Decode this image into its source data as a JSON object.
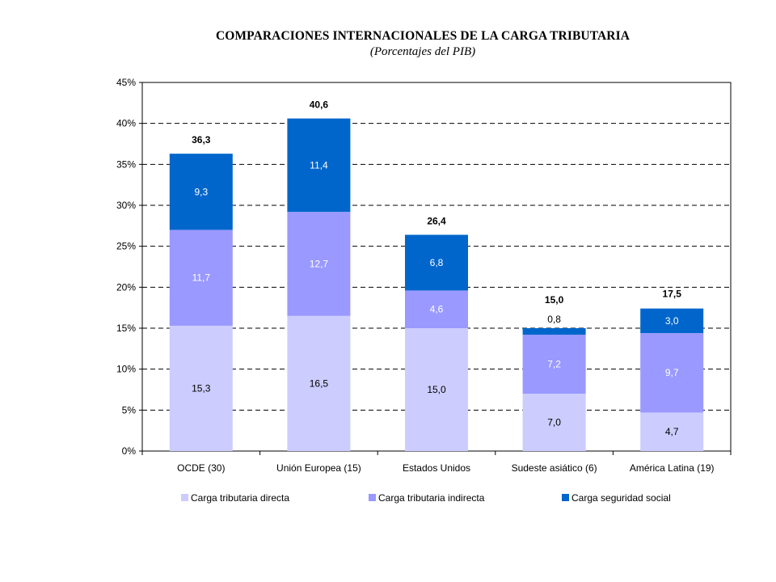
{
  "chart_data": {
    "type": "bar",
    "stacked": true,
    "title": "COMPARACIONES INTERNACIONALES DE LA CARGA TRIBUTARIA",
    "subtitle": "(Porcentajes del PIB)",
    "categories": [
      "OCDE (30)",
      "Unión Europea (15)",
      "Estados Unidos",
      "Sudeste asiático (6)",
      "América Latina (19)"
    ],
    "series": [
      {
        "name": "Carga tributaria directa",
        "color": "#ccccff",
        "label_color": "#000000",
        "values": [
          15.3,
          16.5,
          15.0,
          7.0,
          4.7
        ],
        "labels": [
          "15,3",
          "16,5",
          "15,0",
          "7,0",
          "4,7"
        ]
      },
      {
        "name": "Carga tributaria indirecta",
        "color": "#9999ff",
        "label_color": "#ffffff",
        "values": [
          11.7,
          12.7,
          4.6,
          7.2,
          9.7
        ],
        "labels": [
          "11,7",
          "12,7",
          "4,6",
          "7,2",
          "9,7"
        ]
      },
      {
        "name": "Carga seguridad social",
        "color": "#0066cc",
        "label_color": "#ffffff",
        "values": [
          9.3,
          11.4,
          6.8,
          0.8,
          3.0
        ],
        "labels": [
          "9,3",
          "11,4",
          "6,8",
          "0,8",
          "3,0"
        ]
      }
    ],
    "totals": [
      36.3,
      40.6,
      26.4,
      15.0,
      17.5
    ],
    "total_labels": [
      "36,3",
      "40,6",
      "26,4",
      "15,0",
      "17,5"
    ],
    "y_ticks": [
      0,
      5,
      10,
      15,
      20,
      25,
      30,
      35,
      40,
      45
    ],
    "y_tick_labels": [
      "0%",
      "5%",
      "10%",
      "15%",
      "20%",
      "25%",
      "30%",
      "35%",
      "40%",
      "45%"
    ],
    "ylim": [
      0,
      45
    ],
    "grid": "dashed-horizontal",
    "legend_position": "bottom"
  }
}
